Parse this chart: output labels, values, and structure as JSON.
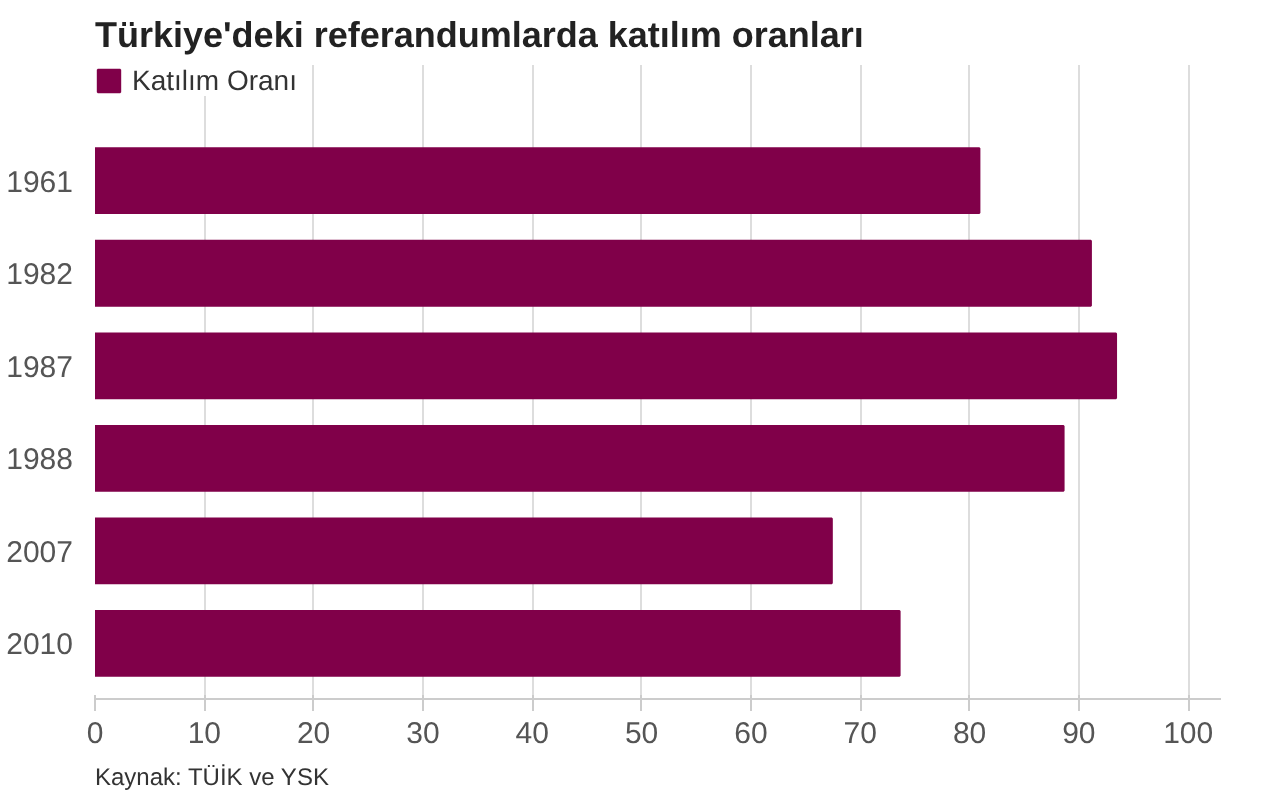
{
  "chart_data": {
    "type": "bar",
    "orientation": "horizontal",
    "title": "Türkiye'deki referandumlarda katılım oranları",
    "categories": [
      "1961",
      "1982",
      "1987",
      "1988",
      "2007",
      "2010"
    ],
    "series": [
      {
        "name": "Katılım Oranı",
        "color": "#800049",
        "values": [
          80.9,
          91.1,
          93.4,
          88.6,
          67.4,
          73.6
        ]
      }
    ],
    "xlim": [
      0,
      103
    ],
    "xticks": [
      0,
      10,
      20,
      30,
      40,
      50,
      60,
      70,
      80,
      90,
      100
    ],
    "grid": "x",
    "legend": "top left",
    "annotations": [
      "Kaynak: TÜİK ve YSK"
    ]
  }
}
